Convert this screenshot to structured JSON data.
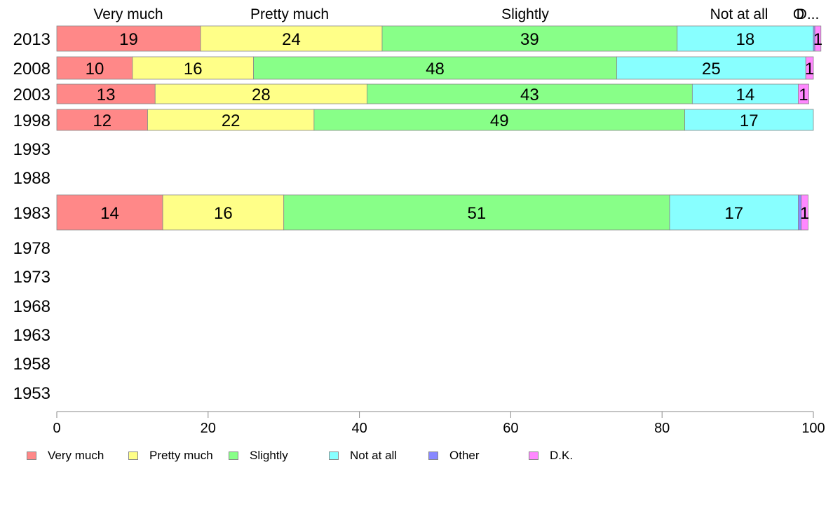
{
  "chart_data": {
    "type": "bar",
    "orientation": "horizontal",
    "stacked": true,
    "categories": [
      "2013",
      "2008",
      "2003",
      "1998",
      "1993",
      "1988",
      "1983",
      "1978",
      "1973",
      "1968",
      "1963",
      "1958",
      "1953"
    ],
    "series": [
      {
        "name": "Very much",
        "color": "#ff8888",
        "values": [
          19,
          10,
          13,
          12,
          null,
          null,
          14,
          null,
          null,
          null,
          null,
          null,
          null
        ],
        "labels": [
          "19",
          "10",
          "13",
          "12",
          "",
          "",
          "14",
          "",
          "",
          "",
          "",
          "",
          ""
        ]
      },
      {
        "name": "Pretty much",
        "color": "#ffff88",
        "values": [
          24,
          16,
          28,
          22,
          null,
          null,
          16,
          null,
          null,
          null,
          null,
          null,
          null
        ],
        "labels": [
          "24",
          "16",
          "28",
          "22",
          "",
          "",
          "16",
          "",
          "",
          "",
          "",
          "",
          ""
        ]
      },
      {
        "name": "Slightly",
        "color": "#88ff88",
        "values": [
          39,
          48,
          43,
          49,
          null,
          null,
          51,
          null,
          null,
          null,
          null,
          null,
          null
        ],
        "labels": [
          "39",
          "48",
          "43",
          "49",
          "",
          "",
          "51",
          "",
          "",
          "",
          "",
          "",
          ""
        ]
      },
      {
        "name": "Not at all",
        "color": "#88ffff",
        "values": [
          18,
          25,
          14,
          17,
          null,
          null,
          17,
          null,
          null,
          null,
          null,
          null,
          null
        ],
        "labels": [
          "18",
          "25",
          "14",
          "17",
          "",
          "",
          "17",
          "",
          "",
          "",
          "",
          "",
          ""
        ]
      },
      {
        "name": "Other",
        "color": "#8888ff",
        "values": [
          0.2,
          0,
          0,
          0,
          null,
          null,
          0.4,
          null,
          null,
          null,
          null,
          null,
          null
        ],
        "labels": [
          "",
          "",
          "",
          "",
          "",
          "",
          "",
          "",
          "",
          "",
          "",
          "",
          ""
        ]
      },
      {
        "name": "D.K.",
        "color": "#ff88ff",
        "values": [
          0.8,
          1,
          1.4,
          0,
          null,
          null,
          0.9,
          null,
          null,
          null,
          null,
          null,
          null
        ],
        "labels": [
          "1",
          "1",
          "1",
          "",
          "",
          "",
          "1",
          "",
          "",
          "",
          "",
          "",
          ""
        ]
      }
    ],
    "top_labels": [
      "Very much",
      "Pretty much",
      "Slightly",
      "Not at all",
      "O",
      "D..."
    ],
    "xlim": [
      0,
      100
    ],
    "xticks": [
      "0",
      "20",
      "40",
      "60",
      "80",
      "100"
    ],
    "grid": false,
    "legend": "bottom"
  }
}
